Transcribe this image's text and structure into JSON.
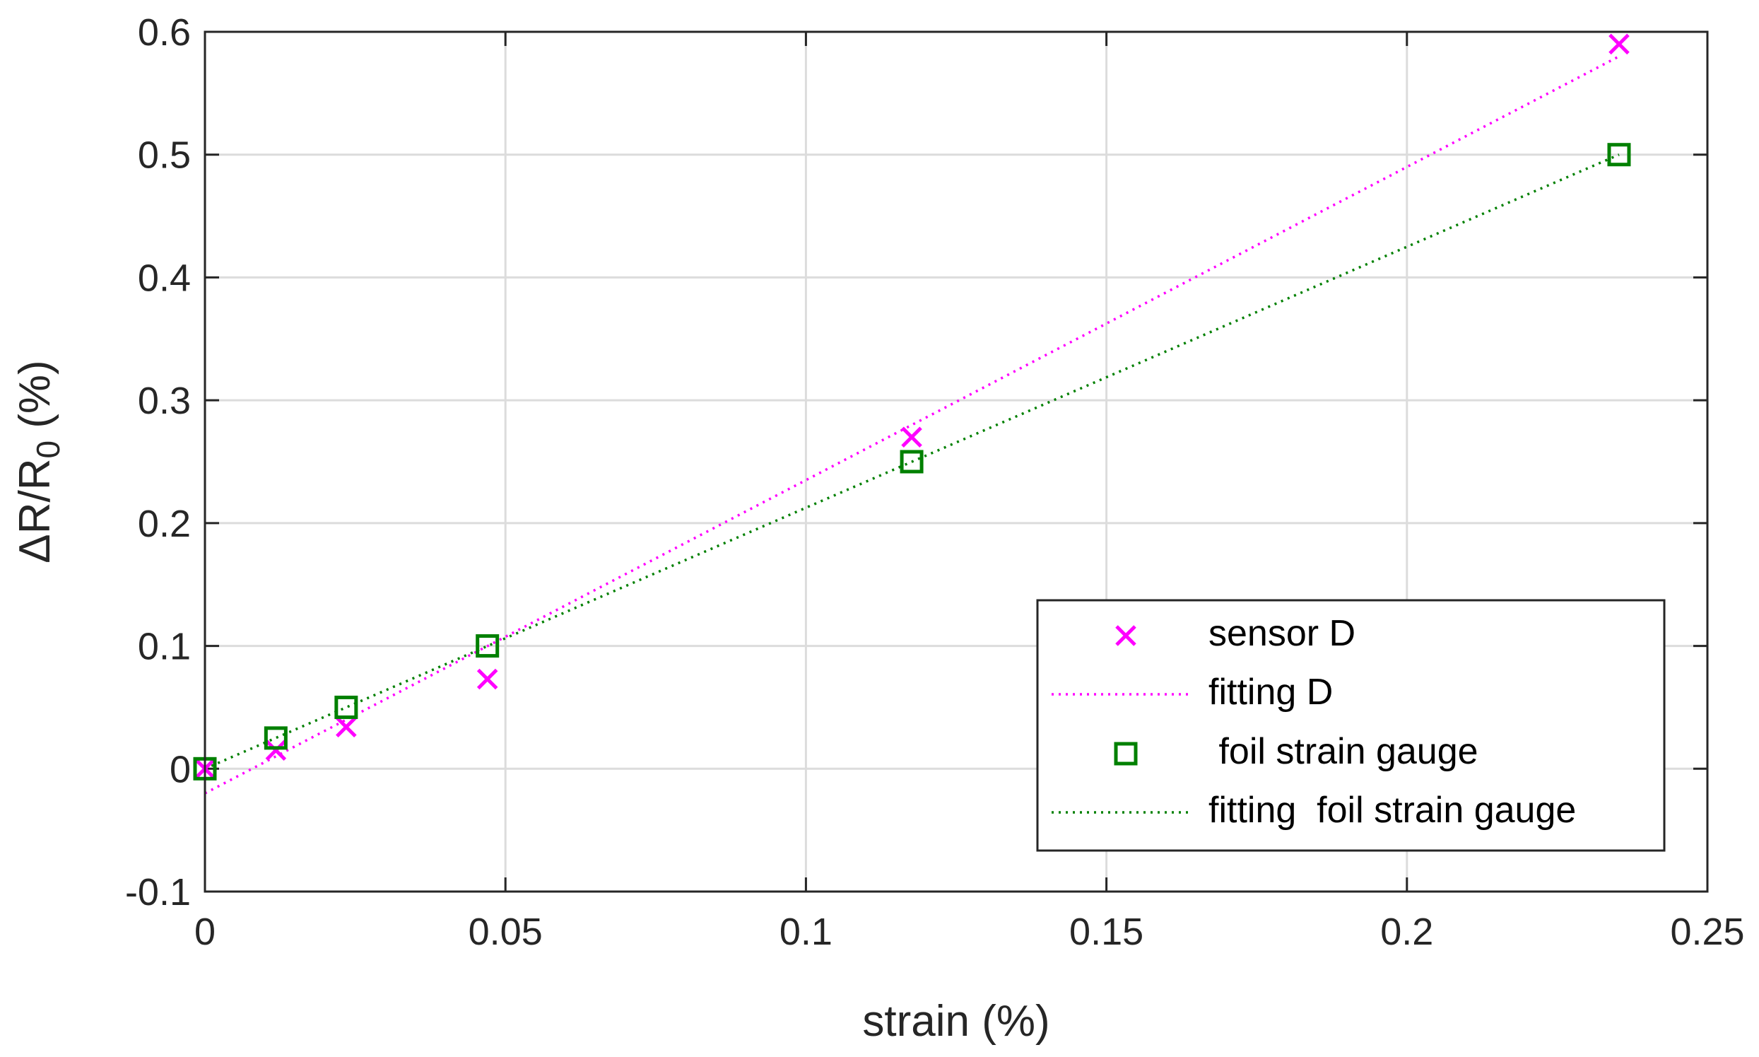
{
  "chart_data": {
    "type": "scatter",
    "xlabel": "strain (%)",
    "ylabel": {
      "main": "ΔR/R",
      "subscript": "0",
      "suffix": " (%)"
    },
    "xlim": [
      0,
      0.25
    ],
    "ylim": [
      -0.1,
      0.6
    ],
    "x_ticks": [
      0,
      0.05,
      0.1,
      0.15,
      0.2,
      0.25
    ],
    "x_tick_labels": [
      "0",
      "0.05",
      "0.1",
      "0.15",
      "0.2",
      "0.25"
    ],
    "y_ticks": [
      -0.1,
      0,
      0.1,
      0.2,
      0.3,
      0.4,
      0.5,
      0.6
    ],
    "y_tick_labels": [
      "-0.1",
      "0",
      "0.1",
      "0.2",
      "0.3",
      "0.4",
      "0.5",
      "0.6"
    ],
    "grid": true,
    "legend_position": "bottom-right",
    "series": [
      {
        "name": "sensor D",
        "kind": "markers",
        "marker": "x",
        "color": "#ff00ff",
        "x": [
          0,
          0.0118,
          0.0235,
          0.047,
          0.1176,
          0.2353
        ],
        "y": [
          0,
          0.015,
          0.034,
          0.073,
          0.27,
          0.59
        ]
      },
      {
        "name": "fitting D",
        "kind": "line",
        "style": "dotted",
        "color": "#ff00ff",
        "x": [
          0,
          0.2353
        ],
        "y": [
          -0.02,
          0.58
        ]
      },
      {
        "name": " foil strain gauge",
        "kind": "markers",
        "marker": "square",
        "color": "#008000",
        "x": [
          0,
          0.0118,
          0.0235,
          0.047,
          0.1176,
          0.2353
        ],
        "y": [
          0,
          0.025,
          0.05,
          0.1,
          0.25,
          0.5
        ]
      },
      {
        "name": "fitting  foil strain gauge",
        "kind": "line",
        "style": "dotted",
        "color": "#008000",
        "x": [
          0,
          0.2353
        ],
        "y": [
          0,
          0.5
        ]
      }
    ]
  }
}
